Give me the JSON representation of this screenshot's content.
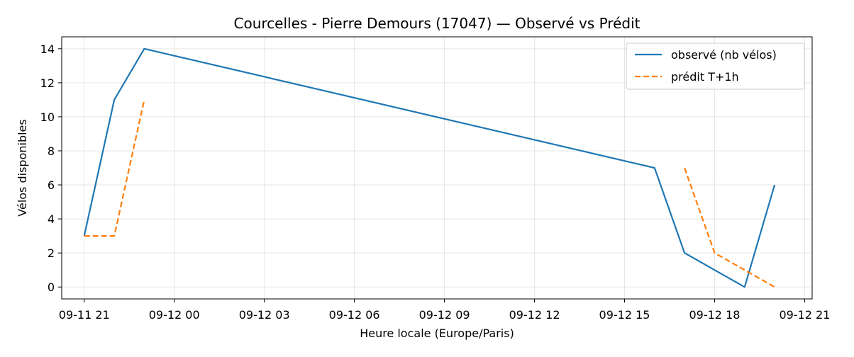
{
  "chart_data": {
    "type": "line",
    "title": "Courcelles - Pierre Demours (17047) — Observé vs Prédit",
    "xlabel": "Heure locale (Europe/Paris)",
    "ylabel": "Vélos disponibles",
    "xlim": [
      "2025-09-11 20:15",
      "2025-09-12 21:15"
    ],
    "ylim": [
      -0.7,
      14.7
    ],
    "x_ticks": [
      {
        "t": "2025-09-11 21:00",
        "label": "09-11 21"
      },
      {
        "t": "2025-09-12 00:00",
        "label": "09-12 00"
      },
      {
        "t": "2025-09-12 03:00",
        "label": "09-12 03"
      },
      {
        "t": "2025-09-12 06:00",
        "label": "09-12 06"
      },
      {
        "t": "2025-09-12 09:00",
        "label": "09-12 09"
      },
      {
        "t": "2025-09-12 12:00",
        "label": "09-12 12"
      },
      {
        "t": "2025-09-12 15:00",
        "label": "09-12 15"
      },
      {
        "t": "2025-09-12 18:00",
        "label": "09-12 18"
      },
      {
        "t": "2025-09-12 21:00",
        "label": "09-12 21"
      }
    ],
    "y_ticks": [
      0,
      2,
      4,
      6,
      8,
      10,
      12,
      14
    ],
    "grid": true,
    "legend_position": "top-right",
    "series": [
      {
        "name": "observé (nb vélos)",
        "color": "#1f77b4",
        "style": "solid",
        "segments": [
          [
            {
              "x": "2025-09-11 21:00",
              "y": 3
            },
            {
              "x": "2025-09-11 22:00",
              "y": 11
            },
            {
              "x": "2025-09-11 23:00",
              "y": 14
            },
            {
              "x": "2025-09-12 16:00",
              "y": 7
            },
            {
              "x": "2025-09-12 17:00",
              "y": 2
            },
            {
              "x": "2025-09-12 18:00",
              "y": 1
            },
            {
              "x": "2025-09-12 19:00",
              "y": 0
            },
            {
              "x": "2025-09-12 20:00",
              "y": 6
            }
          ]
        ]
      },
      {
        "name": "prédit T+1h",
        "color": "#ff7f0e",
        "style": "dashed",
        "segments": [
          [
            {
              "x": "2025-09-11 21:00",
              "y": 3
            },
            {
              "x": "2025-09-11 22:00",
              "y": 3
            },
            {
              "x": "2025-09-11 23:00",
              "y": 11
            }
          ],
          [
            {
              "x": "2025-09-12 17:00",
              "y": 7
            },
            {
              "x": "2025-09-12 18:00",
              "y": 2
            },
            {
              "x": "2025-09-12 19:00",
              "y": 1
            },
            {
              "x": "2025-09-12 20:00",
              "y": 0
            }
          ]
        ]
      }
    ]
  }
}
